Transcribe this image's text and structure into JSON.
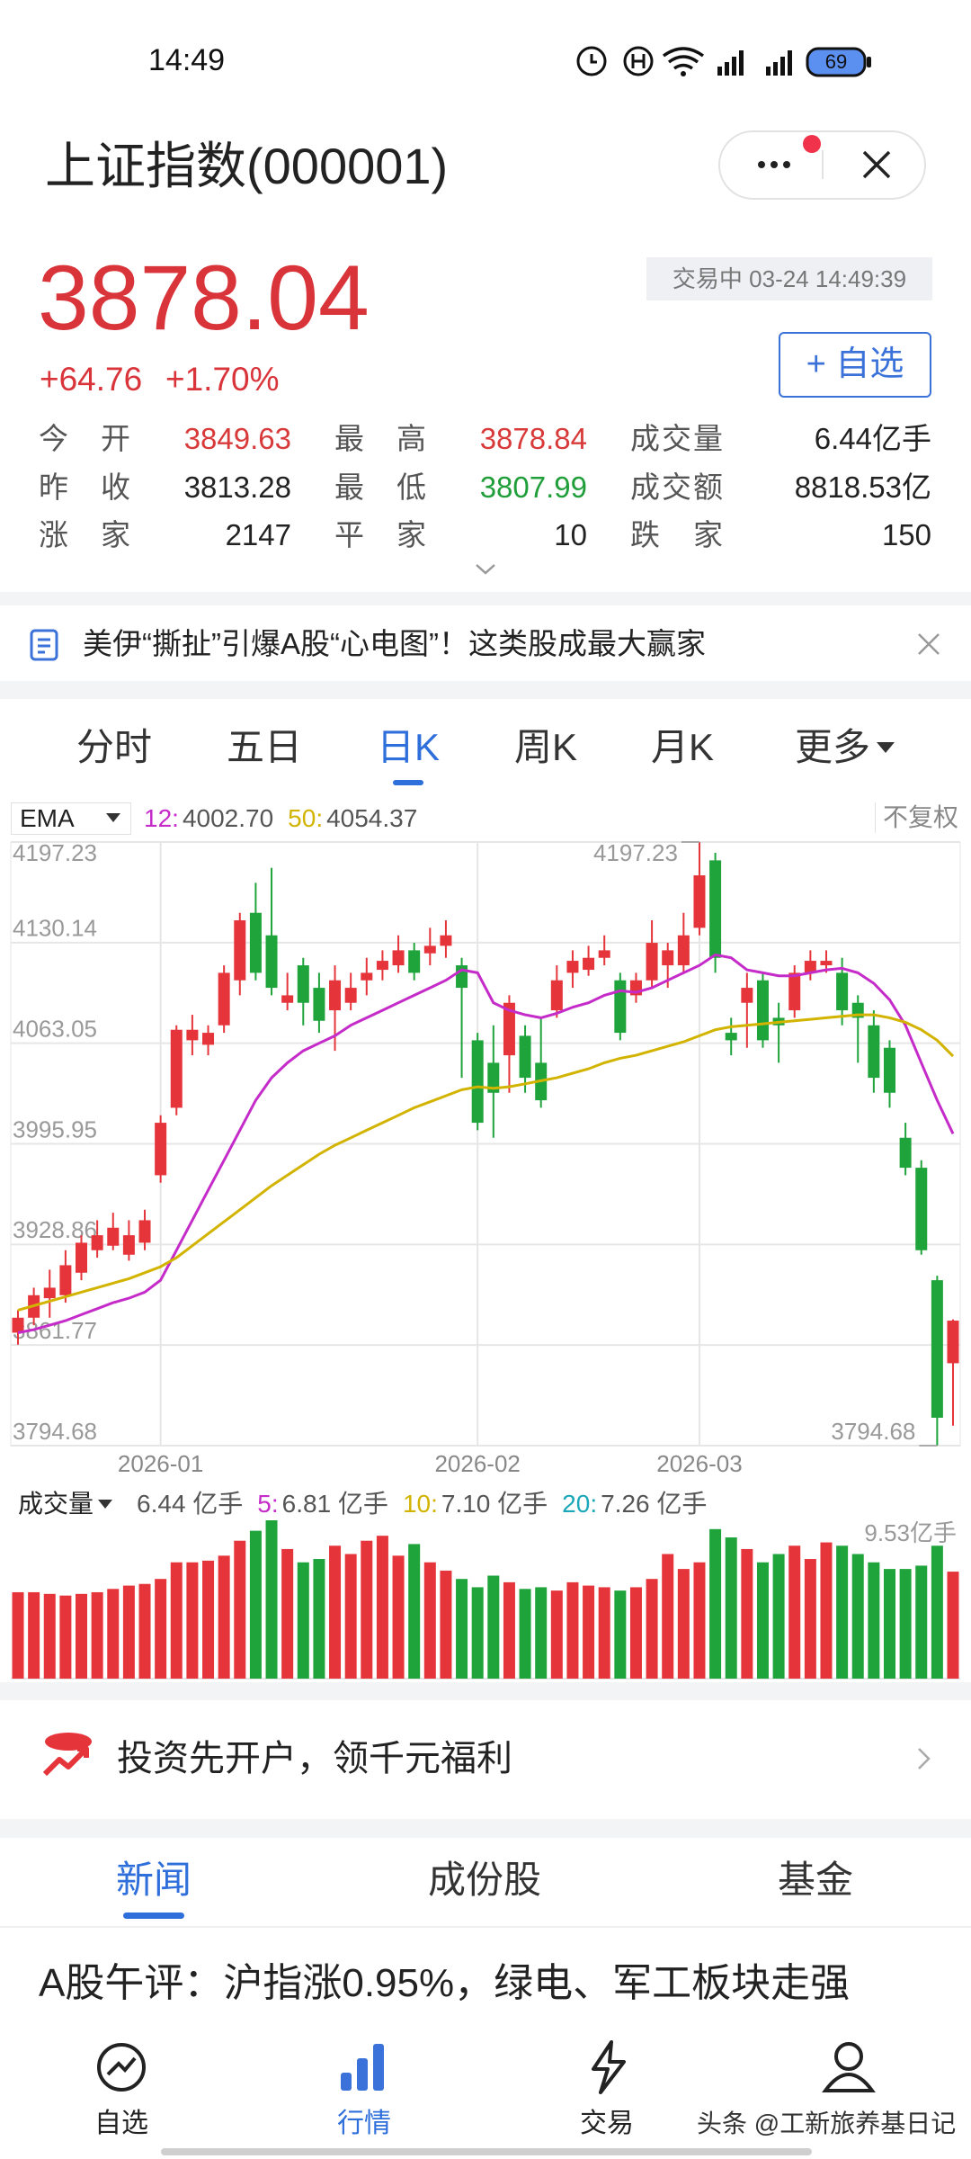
{
  "status": {
    "time": "14:49",
    "battery": "69"
  },
  "header": {
    "title": "上证指数(000001)"
  },
  "quote": {
    "price": "3878.04",
    "change": "+64.76",
    "change_pct": "+1.70%",
    "status": "交易中 03-24 14:49:39",
    "watch_button": "+ 自选",
    "stats": [
      {
        "label": "今开",
        "value": "3849.63",
        "color": "#d83a3a"
      },
      {
        "label": "最高",
        "value": "3878.84",
        "color": "#d83a3a"
      },
      {
        "label": "成交量",
        "value": "6.44亿手",
        "color": "#222222"
      },
      {
        "label": "昨收",
        "value": "3813.28",
        "color": "#222222"
      },
      {
        "label": "最低",
        "value": "3807.99",
        "color": "#1f9e3a"
      },
      {
        "label": "成交额",
        "value": "8818.53亿",
        "color": "#222222"
      },
      {
        "label": "涨家",
        "value": "2147",
        "color": "#222222"
      },
      {
        "label": "平家",
        "value": "10",
        "color": "#222222"
      },
      {
        "label": "跌家",
        "value": "150",
        "color": "#222222"
      }
    ]
  },
  "news_banner": "美伊“撕扯”引爆A股“心电图”！这类股成最大赢家",
  "period_tabs": [
    "分时",
    "五日",
    "日K",
    "周K",
    "月K",
    "更多"
  ],
  "active_period": 2,
  "chart_data": [
    {
      "type": "candlestick",
      "indicator": "EMA",
      "adjust": "不复权",
      "grid": true,
      "up_color": "#e5353b",
      "down_color": "#1fa43c",
      "categories": [
        null,
        null,
        null,
        null,
        null,
        null,
        null,
        null,
        null,
        "2026-01",
        null,
        null,
        null,
        null,
        null,
        null,
        null,
        null,
        null,
        null,
        null,
        null,
        null,
        null,
        null,
        null,
        null,
        null,
        null,
        "2026-02",
        null,
        null,
        null,
        null,
        null,
        null,
        null,
        null,
        null,
        null,
        null,
        null,
        null,
        "2026-03",
        null,
        null,
        null,
        null,
        null,
        null,
        null,
        null,
        null,
        null,
        null,
        null,
        null,
        null,
        null,
        null
      ],
      "open": [
        3870,
        3880,
        3893,
        3895,
        3910,
        3925,
        3928,
        3922,
        3930,
        3975,
        4020,
        4065,
        4062,
        4075,
        4105,
        4150,
        4135,
        4090,
        4115,
        4100,
        4085,
        4090,
        4105,
        4112,
        4115,
        4125,
        4123,
        4128,
        4115,
        4065,
        4050,
        4055,
        4068,
        4050,
        4085,
        4110,
        4112,
        4120,
        4105,
        4095,
        4105,
        4115,
        4115,
        4140,
        4185,
        4070,
        4090,
        4105,
        4080,
        4085,
        4110,
        4115,
        4110,
        4090,
        4075,
        4060,
        4000,
        3980,
        3905,
        3849.63
      ],
      "high": [
        3885,
        3900,
        3912,
        3925,
        3935,
        3945,
        3950,
        3945,
        3952,
        4015,
        4075,
        4082,
        4075,
        4115,
        4150,
        4170,
        4180,
        4110,
        4120,
        4110,
        4115,
        4110,
        4120,
        4125,
        4135,
        4130,
        4140,
        4145,
        4120,
        4070,
        4075,
        4095,
        4075,
        4080,
        4115,
        4125,
        4128,
        4135,
        4110,
        4110,
        4145,
        4130,
        4150,
        4197.23,
        4190,
        4080,
        4110,
        4110,
        4090,
        4115,
        4125,
        4125,
        4120,
        4095,
        4085,
        4065,
        4010,
        3985,
        3908,
        3878.84
      ],
      "low": [
        3862,
        3875,
        3880,
        3890,
        3905,
        3920,
        3925,
        3918,
        3925,
        3970,
        4015,
        4055,
        4055,
        4070,
        4095,
        4105,
        4095,
        4085,
        4075,
        4070,
        4058,
        4085,
        4095,
        4105,
        4110,
        4105,
        4115,
        4120,
        4040,
        4005,
        4000,
        4030,
        4030,
        4020,
        4080,
        4100,
        4108,
        4115,
        4065,
        4090,
        4100,
        4100,
        4110,
        4135,
        4110,
        4055,
        4060,
        4060,
        4050,
        4080,
        4105,
        4110,
        4075,
        4050,
        4030,
        4020,
        3975,
        3922,
        3794.68,
        3807.99
      ],
      "close": [
        3880,
        3895,
        3900,
        3915,
        3930,
        3935,
        3940,
        3935,
        3945,
        4010,
        4072,
        4072,
        4070,
        4110,
        4145,
        4110,
        4100,
        4095,
        4090,
        4078,
        4105,
        4100,
        4110,
        4118,
        4125,
        4110,
        4128,
        4135,
        4100,
        4010,
        4030,
        4090,
        4040,
        4025,
        4105,
        4118,
        4120,
        4125,
        4070,
        4105,
        4130,
        4125,
        4135,
        4175,
        4120,
        4065,
        4100,
        4065,
        4075,
        4110,
        4118,
        4118,
        4085,
        4080,
        4040,
        4030,
        3980,
        3925,
        3813.28,
        3878.04
      ],
      "ylim": [
        3794.68,
        4197.23
      ],
      "yticks": [
        4197.23,
        4130.14,
        4063.05,
        3995.95,
        3928.86,
        3861.77,
        3794.68
      ],
      "annotations": [
        4197.23,
        3794.68
      ],
      "series": [
        {
          "name": "12",
          "color": "#c52bc9",
          "legend_label": "4002.70",
          "values": [
            3870,
            3872,
            3875,
            3878,
            3882,
            3886,
            3890,
            3893,
            3897,
            3905,
            3925,
            3945,
            3965,
            3985,
            4005,
            4025,
            4040,
            4050,
            4058,
            4063,
            4068,
            4075,
            4080,
            4085,
            4090,
            4095,
            4100,
            4105,
            4112,
            4110,
            4090,
            4085,
            4082,
            4080,
            4083,
            4087,
            4090,
            4095,
            4098,
            4097,
            4100,
            4105,
            4110,
            4115,
            4122,
            4120,
            4112,
            4110,
            4108,
            4108,
            4110,
            4112,
            4113,
            4110,
            4103,
            4092,
            4075,
            4050,
            4025,
            4002.7
          ]
        },
        {
          "name": "50",
          "color": "#d2b400",
          "legend_label": "4054.37",
          "values": [
            3885,
            3888,
            3891,
            3894,
            3897,
            3900,
            3903,
            3906,
            3910,
            3914,
            3920,
            3928,
            3936,
            3944,
            3952,
            3960,
            3968,
            3975,
            3982,
            3989,
            3995,
            4000,
            4005,
            4010,
            4015,
            4020,
            4024,
            4028,
            4032,
            4034,
            4033,
            4034,
            4036,
            4038,
            4040,
            4043,
            4046,
            4050,
            4053,
            4055,
            4058,
            4061,
            4064,
            4068,
            4072,
            4074,
            4075,
            4076,
            4077,
            4078,
            4079,
            4080,
            4081,
            4082,
            4082,
            4080,
            4077,
            4072,
            4065,
            4054.37
          ]
        }
      ]
    },
    {
      "type": "bar",
      "title": "成交量",
      "current_label": "6.44 亿手",
      "max_label": "9.53亿手",
      "ylim": [
        0,
        9.53
      ],
      "averages": [
        {
          "name": "5",
          "label": "6.81 亿手",
          "color": "#c52bc9"
        },
        {
          "name": "10",
          "label": "7.10 亿手",
          "color": "#d2b400"
        },
        {
          "name": "20",
          "label": "7.26 亿手",
          "color": "#1aa7b8"
        }
      ],
      "values": [
        5.2,
        5.2,
        5.1,
        5.0,
        5.1,
        5.2,
        5.4,
        5.6,
        5.7,
        6.0,
        7.0,
        7.0,
        7.1,
        7.4,
        8.3,
        8.9,
        9.53,
        7.8,
        7.0,
        7.2,
        8.0,
        7.5,
        8.3,
        8.6,
        7.4,
        8.1,
        7.0,
        6.5,
        6.0,
        5.5,
        6.2,
        5.8,
        5.4,
        5.5,
        5.3,
        5.8,
        5.6,
        5.5,
        5.3,
        5.5,
        6.0,
        7.5,
        6.6,
        7.0,
        9.0,
        8.5,
        7.8,
        7.0,
        7.5,
        8.0,
        7.2,
        8.2,
        8.0,
        7.5,
        7.0,
        6.6,
        6.6,
        6.8,
        8.0,
        6.44
      ]
    }
  ],
  "promo": "投资先开户，领千元福利",
  "news_tabs": [
    "新闻",
    "成份股",
    "基金"
  ],
  "headline": "A股午评：沪指涨0.95%，绿电、军工板块走强",
  "nav": [
    "自选",
    "行情",
    "交易"
  ],
  "active_nav": 1,
  "watermark": "头条 @工新旅养基日记"
}
